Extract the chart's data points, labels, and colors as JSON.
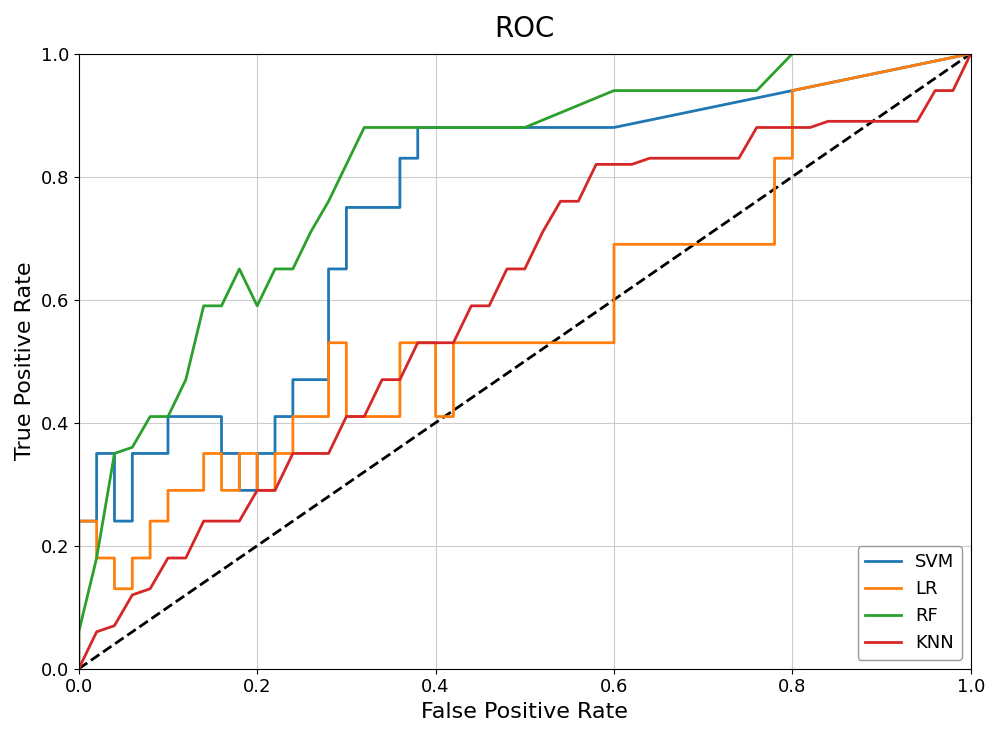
{
  "title": "ROC",
  "xlabel": "False Positive Rate",
  "ylabel": "True Positive Rate",
  "title_fontsize": 20,
  "label_fontsize": 16,
  "background_color": "#ffffff",
  "grid_color": "#cccccc",
  "diagonal": {
    "color": "black",
    "linestyle": "--",
    "linewidth": 2
  },
  "curves": {
    "SVM": {
      "color": "#1f77b4",
      "linewidth": 2,
      "fpr": [
        0.0,
        0.0,
        0.02,
        0.02,
        0.04,
        0.04,
        0.06,
        0.06,
        0.1,
        0.1,
        0.16,
        0.16,
        0.18,
        0.18,
        0.2,
        0.2,
        0.22,
        0.22,
        0.24,
        0.24,
        0.28,
        0.28,
        0.3,
        0.3,
        0.36,
        0.36,
        0.38,
        0.38,
        0.4,
        0.4,
        0.44,
        0.44,
        0.5,
        0.5,
        0.58,
        0.58,
        0.6,
        1.0
      ],
      "tpr": [
        0.0,
        0.24,
        0.24,
        0.35,
        0.35,
        0.24,
        0.24,
        0.35,
        0.35,
        0.41,
        0.41,
        0.35,
        0.35,
        0.29,
        0.29,
        0.35,
        0.35,
        0.41,
        0.41,
        0.47,
        0.47,
        0.65,
        0.65,
        0.75,
        0.75,
        0.83,
        0.83,
        0.88,
        0.88,
        0.88,
        0.88,
        0.88,
        0.88,
        0.88,
        0.88,
        0.88,
        0.88,
        1.0
      ]
    },
    "LR": {
      "color": "#ff7f0e",
      "linewidth": 2,
      "fpr": [
        0.0,
        0.0,
        0.02,
        0.02,
        0.04,
        0.04,
        0.06,
        0.06,
        0.08,
        0.08,
        0.1,
        0.1,
        0.14,
        0.14,
        0.16,
        0.16,
        0.18,
        0.18,
        0.2,
        0.2,
        0.22,
        0.22,
        0.24,
        0.24,
        0.28,
        0.28,
        0.3,
        0.3,
        0.36,
        0.36,
        0.4,
        0.4,
        0.42,
        0.42,
        0.6,
        0.6,
        0.78,
        0.78,
        0.8,
        0.8,
        1.0
      ],
      "tpr": [
        0.0,
        0.24,
        0.24,
        0.18,
        0.18,
        0.13,
        0.13,
        0.18,
        0.18,
        0.24,
        0.24,
        0.29,
        0.29,
        0.35,
        0.35,
        0.29,
        0.29,
        0.35,
        0.35,
        0.29,
        0.29,
        0.35,
        0.35,
        0.41,
        0.41,
        0.53,
        0.53,
        0.41,
        0.41,
        0.53,
        0.53,
        0.41,
        0.41,
        0.53,
        0.53,
        0.69,
        0.69,
        0.83,
        0.83,
        0.94,
        1.0
      ]
    },
    "RF": {
      "color": "#2ca02c",
      "linewidth": 2,
      "fpr": [
        0.0,
        0.0,
        0.02,
        0.04,
        0.06,
        0.08,
        0.1,
        0.12,
        0.14,
        0.16,
        0.18,
        0.2,
        0.22,
        0.24,
        0.26,
        0.28,
        0.3,
        0.32,
        0.36,
        0.4,
        0.44,
        0.5,
        0.6,
        0.64,
        0.7,
        0.76,
        0.8,
        1.0
      ],
      "tpr": [
        0.0,
        0.06,
        0.18,
        0.35,
        0.36,
        0.41,
        0.41,
        0.47,
        0.59,
        0.59,
        0.65,
        0.59,
        0.65,
        0.65,
        0.71,
        0.76,
        0.82,
        0.88,
        0.88,
        0.88,
        0.88,
        0.88,
        0.94,
        0.94,
        0.94,
        0.94,
        1.0,
        1.0
      ]
    },
    "KNN": {
      "color": "#d62728",
      "linewidth": 2,
      "fpr": [
        0.0,
        0.02,
        0.04,
        0.06,
        0.08,
        0.1,
        0.12,
        0.14,
        0.16,
        0.18,
        0.2,
        0.22,
        0.24,
        0.26,
        0.28,
        0.3,
        0.32,
        0.34,
        0.36,
        0.38,
        0.4,
        0.42,
        0.44,
        0.46,
        0.48,
        0.5,
        0.52,
        0.54,
        0.56,
        0.58,
        0.6,
        0.62,
        0.64,
        0.66,
        0.68,
        0.7,
        0.72,
        0.74,
        0.76,
        0.78,
        0.8,
        0.82,
        0.84,
        0.86,
        0.88,
        0.9,
        0.92,
        0.94,
        0.96,
        0.98,
        1.0
      ],
      "tpr": [
        0.0,
        0.06,
        0.07,
        0.12,
        0.13,
        0.18,
        0.18,
        0.24,
        0.24,
        0.24,
        0.29,
        0.29,
        0.35,
        0.35,
        0.35,
        0.41,
        0.41,
        0.47,
        0.47,
        0.53,
        0.53,
        0.53,
        0.59,
        0.59,
        0.65,
        0.65,
        0.71,
        0.76,
        0.76,
        0.82,
        0.82,
        0.82,
        0.83,
        0.83,
        0.83,
        0.83,
        0.83,
        0.83,
        0.88,
        0.88,
        0.88,
        0.88,
        0.89,
        0.89,
        0.89,
        0.89,
        0.89,
        0.89,
        0.94,
        0.94,
        1.0
      ]
    }
  },
  "legend_loc": "lower right",
  "legend_fontsize": 13,
  "tick_fontsize": 13
}
